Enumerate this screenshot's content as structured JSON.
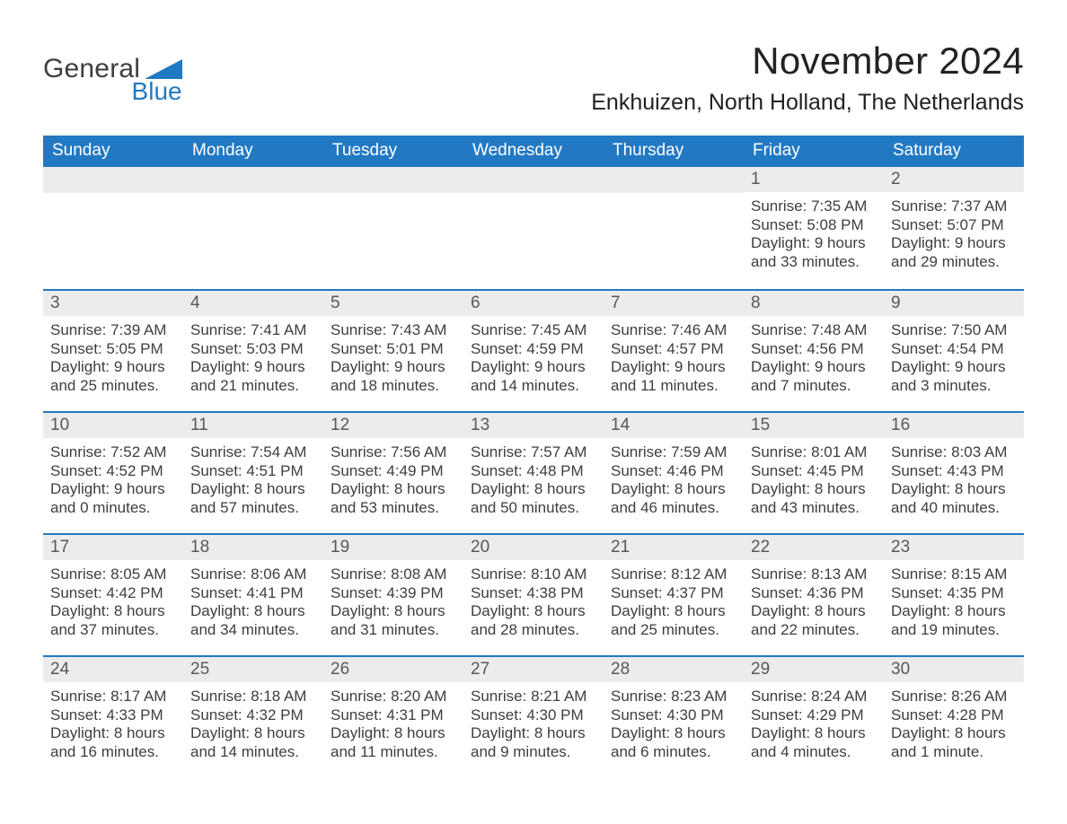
{
  "brand": {
    "word1": "General",
    "word2": "Blue",
    "logo_color": "#2279c3"
  },
  "title": "November 2024",
  "location": "Enkhuizen, North Holland, The Netherlands",
  "colors": {
    "header_bg": "#2279c3",
    "header_text": "#ffffff",
    "daynum_bg": "#ececec",
    "daynum_text": "#585858",
    "body_text": "#3e3e3e",
    "week_divider": "#2279c3",
    "page_bg": "#ffffff"
  },
  "fonts": {
    "title_pt": 42,
    "location_pt": 25,
    "weekday_pt": 19,
    "daynum_pt": 19,
    "body_pt": 17
  },
  "weekdays": [
    "Sunday",
    "Monday",
    "Tuesday",
    "Wednesday",
    "Thursday",
    "Friday",
    "Saturday"
  ],
  "layout": {
    "blank_leading_days": 5,
    "columns": 7
  },
  "days": [
    {
      "n": 1,
      "sunrise": "7:35 AM",
      "sunset": "5:08 PM",
      "daylight": "9 hours and 33 minutes."
    },
    {
      "n": 2,
      "sunrise": "7:37 AM",
      "sunset": "5:07 PM",
      "daylight": "9 hours and 29 minutes."
    },
    {
      "n": 3,
      "sunrise": "7:39 AM",
      "sunset": "5:05 PM",
      "daylight": "9 hours and 25 minutes."
    },
    {
      "n": 4,
      "sunrise": "7:41 AM",
      "sunset": "5:03 PM",
      "daylight": "9 hours and 21 minutes."
    },
    {
      "n": 5,
      "sunrise": "7:43 AM",
      "sunset": "5:01 PM",
      "daylight": "9 hours and 18 minutes."
    },
    {
      "n": 6,
      "sunrise": "7:45 AM",
      "sunset": "4:59 PM",
      "daylight": "9 hours and 14 minutes."
    },
    {
      "n": 7,
      "sunrise": "7:46 AM",
      "sunset": "4:57 PM",
      "daylight": "9 hours and 11 minutes."
    },
    {
      "n": 8,
      "sunrise": "7:48 AM",
      "sunset": "4:56 PM",
      "daylight": "9 hours and 7 minutes."
    },
    {
      "n": 9,
      "sunrise": "7:50 AM",
      "sunset": "4:54 PM",
      "daylight": "9 hours and 3 minutes."
    },
    {
      "n": 10,
      "sunrise": "7:52 AM",
      "sunset": "4:52 PM",
      "daylight": "9 hours and 0 minutes."
    },
    {
      "n": 11,
      "sunrise": "7:54 AM",
      "sunset": "4:51 PM",
      "daylight": "8 hours and 57 minutes."
    },
    {
      "n": 12,
      "sunrise": "7:56 AM",
      "sunset": "4:49 PM",
      "daylight": "8 hours and 53 minutes."
    },
    {
      "n": 13,
      "sunrise": "7:57 AM",
      "sunset": "4:48 PM",
      "daylight": "8 hours and 50 minutes."
    },
    {
      "n": 14,
      "sunrise": "7:59 AM",
      "sunset": "4:46 PM",
      "daylight": "8 hours and 46 minutes."
    },
    {
      "n": 15,
      "sunrise": "8:01 AM",
      "sunset": "4:45 PM",
      "daylight": "8 hours and 43 minutes."
    },
    {
      "n": 16,
      "sunrise": "8:03 AM",
      "sunset": "4:43 PM",
      "daylight": "8 hours and 40 minutes."
    },
    {
      "n": 17,
      "sunrise": "8:05 AM",
      "sunset": "4:42 PM",
      "daylight": "8 hours and 37 minutes."
    },
    {
      "n": 18,
      "sunrise": "8:06 AM",
      "sunset": "4:41 PM",
      "daylight": "8 hours and 34 minutes."
    },
    {
      "n": 19,
      "sunrise": "8:08 AM",
      "sunset": "4:39 PM",
      "daylight": "8 hours and 31 minutes."
    },
    {
      "n": 20,
      "sunrise": "8:10 AM",
      "sunset": "4:38 PM",
      "daylight": "8 hours and 28 minutes."
    },
    {
      "n": 21,
      "sunrise": "8:12 AM",
      "sunset": "4:37 PM",
      "daylight": "8 hours and 25 minutes."
    },
    {
      "n": 22,
      "sunrise": "8:13 AM",
      "sunset": "4:36 PM",
      "daylight": "8 hours and 22 minutes."
    },
    {
      "n": 23,
      "sunrise": "8:15 AM",
      "sunset": "4:35 PM",
      "daylight": "8 hours and 19 minutes."
    },
    {
      "n": 24,
      "sunrise": "8:17 AM",
      "sunset": "4:33 PM",
      "daylight": "8 hours and 16 minutes."
    },
    {
      "n": 25,
      "sunrise": "8:18 AM",
      "sunset": "4:32 PM",
      "daylight": "8 hours and 14 minutes."
    },
    {
      "n": 26,
      "sunrise": "8:20 AM",
      "sunset": "4:31 PM",
      "daylight": "8 hours and 11 minutes."
    },
    {
      "n": 27,
      "sunrise": "8:21 AM",
      "sunset": "4:30 PM",
      "daylight": "8 hours and 9 minutes."
    },
    {
      "n": 28,
      "sunrise": "8:23 AM",
      "sunset": "4:30 PM",
      "daylight": "8 hours and 6 minutes."
    },
    {
      "n": 29,
      "sunrise": "8:24 AM",
      "sunset": "4:29 PM",
      "daylight": "8 hours and 4 minutes."
    },
    {
      "n": 30,
      "sunrise": "8:26 AM",
      "sunset": "4:28 PM",
      "daylight": "8 hours and 1 minute."
    }
  ],
  "labels": {
    "sunrise": "Sunrise:",
    "sunset": "Sunset:",
    "daylight": "Daylight:"
  }
}
